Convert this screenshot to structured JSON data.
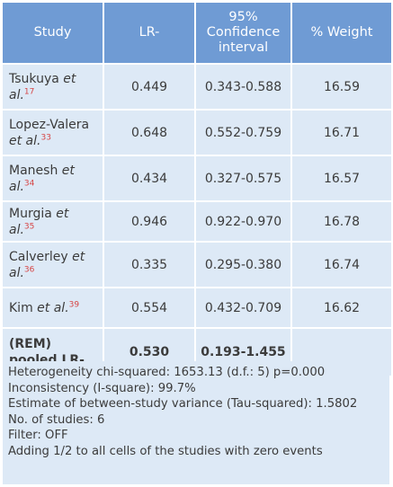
{
  "headers": {
    "study": "Study",
    "lr": "LR-",
    "ci": "95% Confidence interval",
    "weight": "% Weight"
  },
  "rows": [
    {
      "author": "Tsukuya",
      "etal": "et al.",
      "ref": "17",
      "lr": "0.449",
      "ci": "0.343-0.588",
      "weight": "16.59"
    },
    {
      "author": "Lopez-Valera",
      "etal": "et al.",
      "ref": "33",
      "lr": "0.648",
      "ci": "0.552-0.759",
      "weight": "16.71"
    },
    {
      "author": "Manesh",
      "etal": "et al.",
      "ref": "34",
      "lr": "0.434",
      "ci": "0.327-0.575",
      "weight": "16.57"
    },
    {
      "author": "Murgia",
      "etal": "et al.",
      "ref": "35",
      "lr": "0.946",
      "ci": "0.922-0.970",
      "weight": "16.78"
    },
    {
      "author": "Calverley",
      "etal": "et al.",
      "ref": "36",
      "lr": "0.335",
      "ci": "0.295-0.380",
      "weight": "16.74"
    },
    {
      "author": "Kim",
      "etal": "et al.",
      "ref": "39",
      "lr": "0.554",
      "ci": "0.432-0.709",
      "weight": "16.62"
    }
  ],
  "pooled": {
    "label": "(REM) pooled LR-",
    "lr": "0.530",
    "ci": "0.193-1.455",
    "weight": ""
  },
  "notes": [
    "Heterogeneity chi-squared: 1653.13 (d.f.: 5) p=0.000",
    "Inconsistency (I-square): 99.7%",
    "Estimate of between-study variance (Tau-squared): 1.5802",
    "No. of studies: 6",
    "Filter: OFF",
    "Adding 1/2 to all cells of the studies with zero events"
  ],
  "colors": {
    "header_bg": "#6f9bd4",
    "cell_bg": "#dde9f6",
    "reference": "#d64545"
  }
}
